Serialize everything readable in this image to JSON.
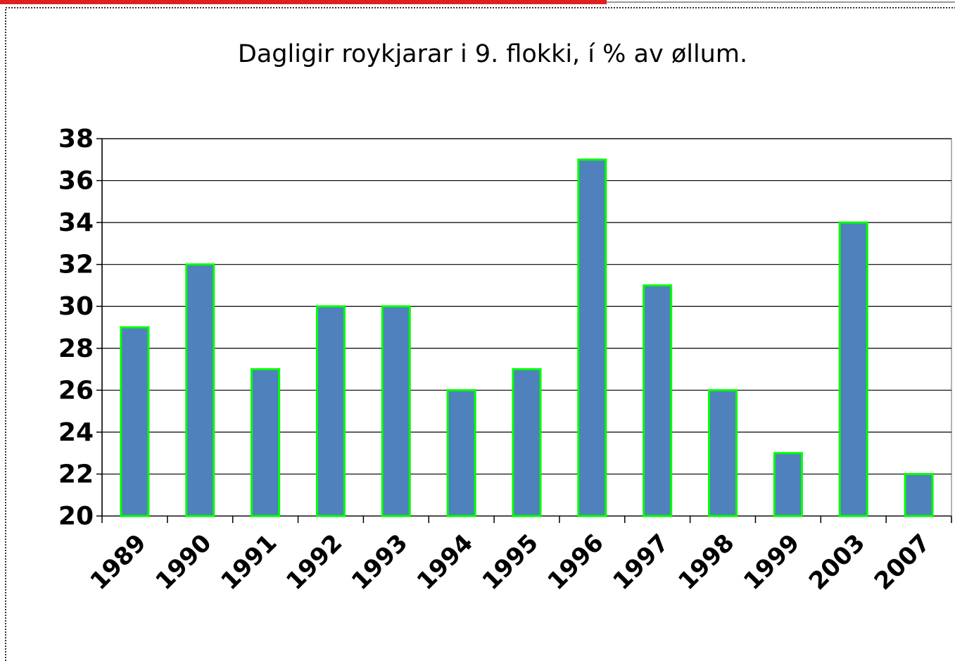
{
  "chart_data": {
    "type": "bar",
    "title": "Dagligir roykjarar i 9. flokki, í % av øllum.",
    "categories": [
      "1989",
      "1990",
      "1991",
      "1992",
      "1993",
      "1994",
      "1995",
      "1996",
      "1997",
      "1998",
      "1999",
      "2003",
      "2007"
    ],
    "values": [
      29,
      32,
      27,
      30,
      30,
      26,
      27,
      37,
      31,
      26,
      23,
      34,
      22
    ],
    "color": "#4f81bd",
    "edge_color": "#00ff00",
    "ylim": [
      20,
      38
    ],
    "yticks": [
      20,
      22,
      24,
      26,
      28,
      30,
      32,
      34,
      36,
      38
    ],
    "grid": true
  }
}
